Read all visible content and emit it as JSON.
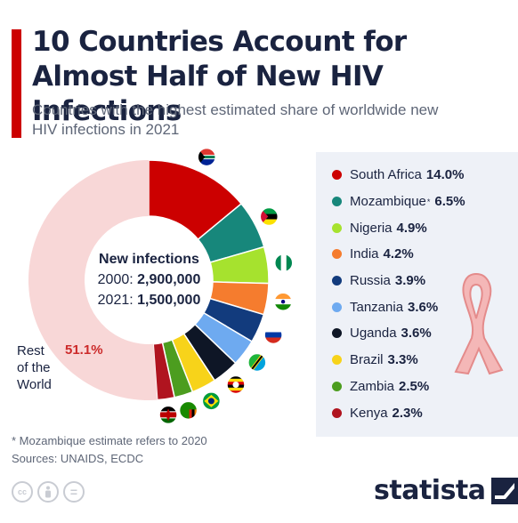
{
  "title": "10 Countries Account for Almost Half of New HIV Infections",
  "subtitle": "Countries with the highest estimated share of worldwide new HIV infections in 2021",
  "center": {
    "title": "New infections",
    "rows": [
      {
        "year": "2000:",
        "value": "2,900,000"
      },
      {
        "year": "2021:",
        "value": "1,500,000"
      }
    ]
  },
  "chart_data": {
    "type": "pie",
    "title": "10 Countries Account for Almost Half of New HIV Infections",
    "categories": [
      "South Africa",
      "Mozambique",
      "Nigeria",
      "India",
      "Russia",
      "Tanzania",
      "Uganda",
      "Brazil",
      "Zambia",
      "Kenya",
      "Rest of the World"
    ],
    "values": [
      14.0,
      6.5,
      4.9,
      4.2,
      3.9,
      3.6,
      3.6,
      3.3,
      2.5,
      2.3,
      51.1
    ],
    "labels": [
      "14.0%",
      "6.5%",
      "4.9%",
      "4.2%",
      "3.9%",
      "3.6%",
      "3.6%",
      "3.3%",
      "2.5%",
      "2.3%",
      "51.1%"
    ],
    "colors": [
      "#cc0000",
      "#17877b",
      "#a6e22e",
      "#f57c2e",
      "#123b7d",
      "#6eaaf0",
      "#0e1626",
      "#f7d31a",
      "#4c9d1f",
      "#b0141f",
      "#f8d7d7"
    ],
    "flags": [
      "south-africa-flag-icon",
      "mozambique-flag-icon",
      "nigeria-flag-icon",
      "india-flag-icon",
      "russia-flag-icon",
      "tanzania-flag-icon",
      "uganda-flag-icon",
      "brazil-flag-icon",
      "zambia-flag-icon",
      "kenya-flag-icon"
    ],
    "legend": "right"
  },
  "legend": [
    {
      "name": "South Africa",
      "note": "",
      "value": "14.0%"
    },
    {
      "name": "Mozambique",
      "note": "*",
      "value": "6.5%"
    },
    {
      "name": "Nigeria",
      "note": "",
      "value": "4.9%"
    },
    {
      "name": "India",
      "note": "",
      "value": "4.2%"
    },
    {
      "name": "Russia",
      "note": "",
      "value": "3.9%"
    },
    {
      "name": "Tanzania",
      "note": "",
      "value": "3.6%"
    },
    {
      "name": "Uganda",
      "note": "",
      "value": "3.6%"
    },
    {
      "name": "Brazil",
      "note": "",
      "value": "3.3%"
    },
    {
      "name": "Zambia",
      "note": "",
      "value": "2.5%"
    },
    {
      "name": "Kenya",
      "note": "",
      "value": "2.3%"
    }
  ],
  "rest": {
    "lines": [
      "Rest",
      "of the",
      "World"
    ],
    "value": "51.1%"
  },
  "footnote": "* Mozambique estimate refers to 2020",
  "sources": "Sources: UNAIDS, ECDC",
  "license_icons": [
    {
      "name": "cc-icon",
      "text": "cc"
    },
    {
      "name": "attribution-icon",
      "text": ""
    },
    {
      "name": "no-derivatives-icon",
      "text": "="
    }
  ],
  "brand": "statista",
  "ribbon_icon": "aids-ribbon-icon"
}
